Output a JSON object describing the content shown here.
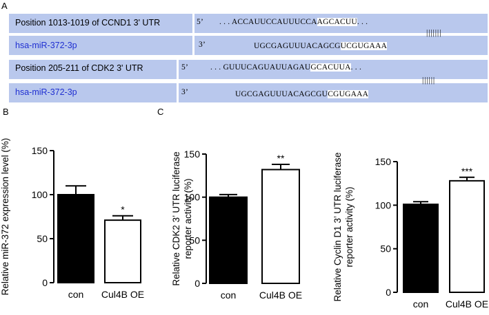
{
  "panel_a": {
    "label": "A",
    "rows": [
      {
        "position_label": "Position 1013-1019 of CCND1 3' UTR",
        "mirna_label": "hsa-miR-372-3p",
        "five_prime": "5’",
        "three_prime": "3’",
        "target_pre": ". . . ACCAUUCCAUUUCCA",
        "target_hl": "AGCACUU",
        "target_post": ". . .",
        "mirna_pre": "UGCGAGUUUACAGCG",
        "mirna_hl": "UCGUGAAA",
        "pairing": "| | | | | | |"
      },
      {
        "position_label": "Position 205-211 of CDK2 3' UTR",
        "mirna_label": "hsa-miR-372-3p",
        "five_prime": "5’",
        "three_prime": "3’",
        "target_pre": ". . . GUUUCAGUAUUAGAU",
        "target_hl": "GCACUUA",
        "target_post": ". . .",
        "mirna_pre": "UGCGAGUUUACAGCGU",
        "mirna_hl": "CGUGAAA",
        "pairing": "| | | | | |"
      }
    ]
  },
  "panel_b_label": "B",
  "panel_c_label": "C",
  "chart_data": [
    {
      "type": "bar",
      "panel": "B",
      "categories": [
        "con",
        "Cul4B OE"
      ],
      "values": [
        100,
        71
      ],
      "errors": [
        10,
        5
      ],
      "significance": [
        "",
        "*"
      ],
      "ylabel": "Relative miR-372 expression level (%)",
      "ylim": [
        0,
        150
      ],
      "yticks": [
        0,
        50,
        100,
        150
      ],
      "colors": [
        "#000000",
        "#ffffff"
      ]
    },
    {
      "type": "bar",
      "panel": "C",
      "categories": [
        "con",
        "Cul4B OE"
      ],
      "values": [
        100,
        132
      ],
      "errors": [
        3,
        6
      ],
      "significance": [
        "",
        "**"
      ],
      "ylabel": [
        "Relative CDK2 3’ UTR  luciferase",
        "reporter activity (%)"
      ],
      "ylim": [
        0,
        150
      ],
      "yticks": [
        0,
        50,
        100,
        150
      ],
      "colors": [
        "#000000",
        "#ffffff"
      ]
    },
    {
      "type": "bar",
      "panel": "C",
      "categories": [
        "con",
        "Cul4B OE"
      ],
      "values": [
        101,
        128
      ],
      "errors": [
        3,
        4
      ],
      "significance": [
        "",
        "***"
      ],
      "ylabel": [
        "Relative Cyclin D1 3’ UTR  luciferase",
        "reporter activity (%)"
      ],
      "ylim": [
        0,
        150
      ],
      "yticks": [
        0,
        50,
        100,
        150
      ],
      "colors": [
        "#000000",
        "#ffffff"
      ]
    }
  ]
}
